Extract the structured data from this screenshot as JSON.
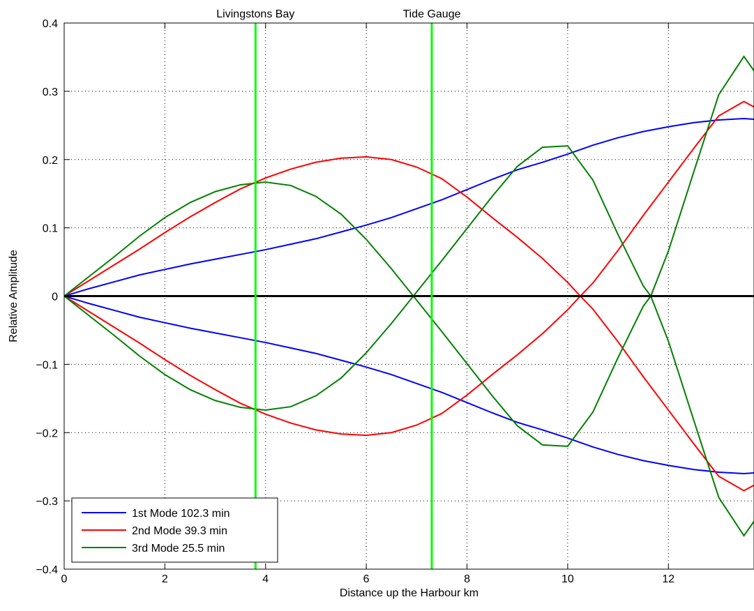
{
  "chart_data": {
    "type": "line",
    "title": "",
    "xlabel": "Distance up the Harbour km",
    "ylabel": "Relative Amplitude",
    "xlim": [
      0,
      13.7
    ],
    "ylim": [
      -0.4,
      0.4
    ],
    "xticks": [
      0,
      2,
      4,
      6,
      8,
      10,
      12
    ],
    "yticks": [
      -0.4,
      -0.3,
      -0.2,
      -0.1,
      0,
      0.1,
      0.2,
      0.3,
      0.4
    ],
    "xtick_labels": [
      "0",
      "2",
      "4",
      "6",
      "8",
      "10",
      "12"
    ],
    "ytick_labels": [
      "−0.4",
      "−0.3",
      "−0.2",
      "−0.1",
      "0",
      "0.1",
      "0.2",
      "0.3",
      "0.4"
    ],
    "grid": true,
    "legend": "bottom-left",
    "colors": {
      "mode1": "#0000ff",
      "mode2": "#ff0000",
      "mode3": "#008000",
      "markers": "#00ff00",
      "zero": "#000000"
    },
    "markers": [
      {
        "label": "Livingstons Bay",
        "x": 3.8
      },
      {
        "label": "Tide Gauge",
        "x": 7.3
      }
    ],
    "series": [
      {
        "name": "1st Mode 102.3 min",
        "color": "#0000ff",
        "mirrored": true,
        "x": [
          0,
          0.5,
          1,
          1.5,
          2,
          2.5,
          3,
          3.5,
          4,
          4.5,
          5,
          5.5,
          6,
          6.5,
          7,
          7.5,
          8,
          8.5,
          9,
          9.5,
          10,
          10.5,
          11,
          11.5,
          12,
          12.5,
          13,
          13.5,
          13.7
        ],
        "values": [
          0,
          0.011,
          0.021,
          0.031,
          0.039,
          0.047,
          0.054,
          0.061,
          0.068,
          0.076,
          0.084,
          0.094,
          0.104,
          0.115,
          0.128,
          0.141,
          0.156,
          0.171,
          0.185,
          0.196,
          0.208,
          0.221,
          0.232,
          0.241,
          0.248,
          0.254,
          0.258,
          0.26,
          0.259
        ]
      },
      {
        "name": "2nd Mode 39.3 min",
        "color": "#ff0000",
        "mirrored": true,
        "x": [
          0,
          0.5,
          1,
          1.5,
          2,
          2.5,
          3,
          3.5,
          4,
          4.5,
          5,
          5.5,
          6,
          6.5,
          7,
          7.5,
          8,
          8.5,
          9,
          9.5,
          10,
          10.25,
          10.5,
          11,
          11.5,
          12,
          12.5,
          13,
          13.5,
          13.7
        ],
        "values": [
          0,
          0.023,
          0.046,
          0.069,
          0.093,
          0.116,
          0.137,
          0.157,
          0.173,
          0.186,
          0.196,
          0.202,
          0.204,
          0.2,
          0.189,
          0.172,
          0.145,
          0.115,
          0.086,
          0.055,
          0.02,
          0,
          -0.019,
          -0.067,
          -0.118,
          -0.167,
          -0.216,
          -0.264,
          -0.285,
          -0.277
        ]
      },
      {
        "name": "3rd Mode 25.5 min",
        "color": "#008000",
        "mirrored": true,
        "x": [
          0,
          0.5,
          1,
          1.5,
          2,
          2.5,
          3,
          3.5,
          4,
          4.5,
          5,
          5.5,
          6,
          6.5,
          7,
          7.5,
          8,
          8.5,
          9,
          9.5,
          10,
          10.5,
          11,
          11.5,
          11.65,
          12,
          12.5,
          13,
          13.5,
          13.7
        ],
        "values": [
          0,
          0.029,
          0.058,
          0.088,
          0.115,
          0.137,
          0.153,
          0.163,
          0.167,
          0.162,
          0.146,
          0.12,
          0.083,
          0.04,
          -0.006,
          -0.052,
          -0.099,
          -0.146,
          -0.19,
          -0.218,
          -0.22,
          -0.17,
          -0.09,
          -0.015,
          0,
          0.066,
          0.181,
          0.295,
          0.351,
          0.33
        ]
      }
    ]
  }
}
